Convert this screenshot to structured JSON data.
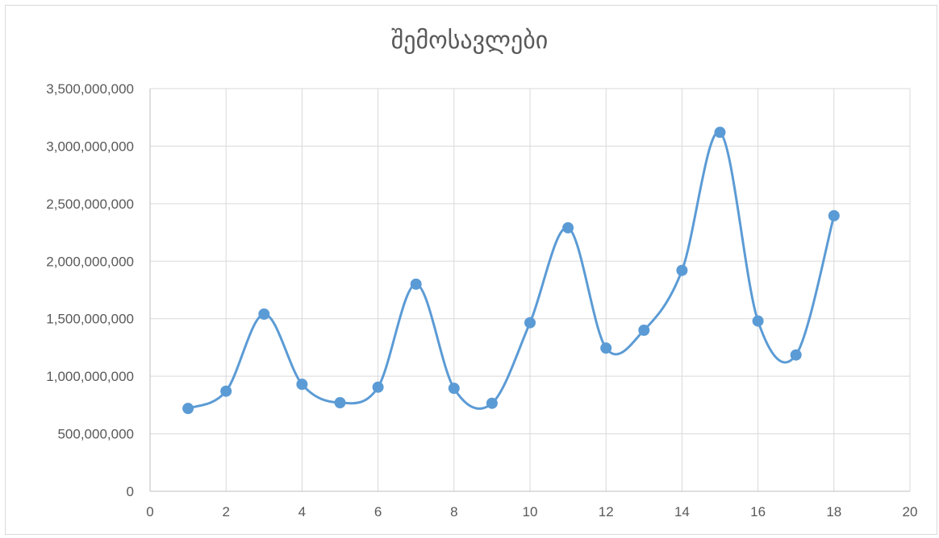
{
  "chart_data": {
    "type": "scatter",
    "title": "შემოსავლები",
    "xlabel": "",
    "ylabel": "",
    "xlim": [
      0,
      20
    ],
    "ylim": [
      0,
      3500000000
    ],
    "x_ticks": [
      0,
      2,
      4,
      6,
      8,
      10,
      12,
      14,
      16,
      18,
      20
    ],
    "y_ticks": [
      0,
      500000000,
      1000000000,
      1500000000,
      2000000000,
      2500000000,
      3000000000,
      3500000000
    ],
    "x_tick_labels": [
      "0",
      "2",
      "4",
      "6",
      "8",
      "10",
      "12",
      "14",
      "16",
      "18",
      "20"
    ],
    "y_tick_labels": [
      "0",
      "500,000,000",
      "1,000,000,000",
      "1,500,000,000",
      "2,000,000,000",
      "2,500,000,000",
      "3,000,000,000",
      "3,500,000,000"
    ],
    "grid": true,
    "legend": "none",
    "smooth": true,
    "series": [
      {
        "color": "#5b9bd5",
        "x": [
          1,
          2,
          3,
          4,
          5,
          6,
          7,
          8,
          9,
          10,
          11,
          12,
          13,
          14,
          15,
          16,
          17,
          18
        ],
        "y": [
          720000000,
          870000000,
          1540000000,
          930000000,
          770000000,
          905000000,
          1800000000,
          895000000,
          765000000,
          1465000000,
          2290000000,
          1245000000,
          1400000000,
          1920000000,
          3120000000,
          1480000000,
          1185000000,
          2395000000
        ]
      }
    ]
  }
}
